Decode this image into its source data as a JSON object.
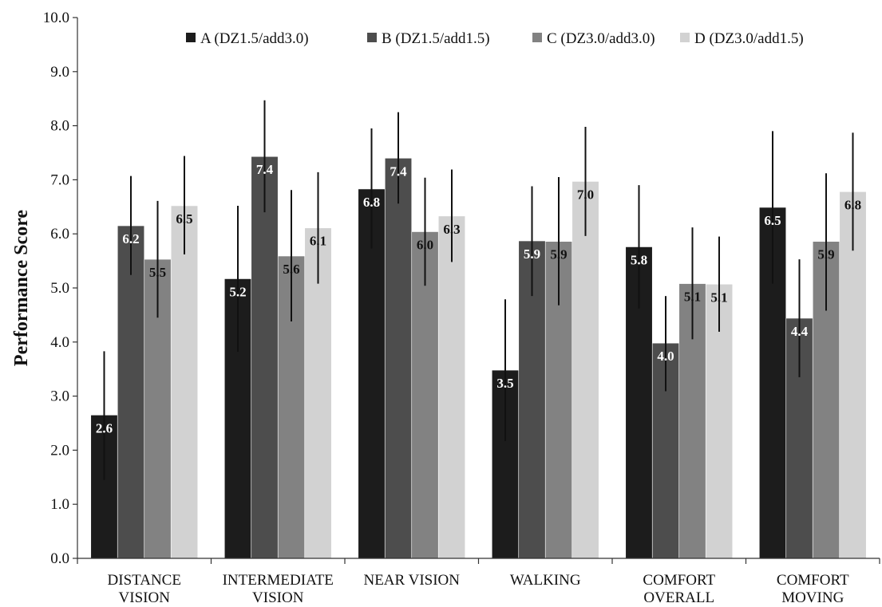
{
  "chart_data": {
    "type": "bar",
    "title": "",
    "xlabel": "",
    "ylabel": "Performance Score",
    "ylim": [
      0,
      10
    ],
    "ytick_step": 1,
    "ytick_labels": [
      "0.0",
      "1.0",
      "2.0",
      "3.0",
      "4.0",
      "5.0",
      "6.0",
      "7.0",
      "8.0",
      "9.0",
      "10.0"
    ],
    "grid": false,
    "legend_position": "top",
    "categories": [
      [
        "DISTANCE",
        "VISION"
      ],
      [
        "INTERMEDIATE",
        "VISION"
      ],
      [
        "NEAR VISION"
      ],
      [
        "WALKING"
      ],
      [
        "COMFORT",
        "OVERALL"
      ],
      [
        "COMFORT",
        "MOVING"
      ]
    ],
    "series": [
      {
        "name": "A (DZ1.5/add3.0)",
        "color": "#1c1c1c",
        "label_color": "#ffffff",
        "values": [
          2.65,
          5.17,
          6.83,
          3.48,
          5.76,
          6.49
        ],
        "data_labels": [
          "2.6",
          "5.2",
          "6.8",
          "3.5",
          "5.8",
          "6.5"
        ],
        "error_low": [
          1.45,
          3.82,
          5.73,
          2.17,
          4.62,
          5.08
        ],
        "error_high": [
          3.83,
          6.52,
          7.95,
          4.79,
          6.9,
          7.9
        ]
      },
      {
        "name": "B (DZ1.5/add1.5)",
        "color": "#4d4d4d",
        "label_color": "#ffffff",
        "values": [
          6.15,
          7.43,
          7.4,
          5.87,
          3.98,
          4.44
        ],
        "data_labels": [
          "6.2",
          "7.4",
          "7.4",
          "5.9",
          "4.0",
          "4.4"
        ],
        "error_low": [
          5.24,
          6.4,
          6.56,
          4.85,
          3.09,
          3.35
        ],
        "error_high": [
          7.07,
          8.47,
          8.25,
          6.88,
          4.85,
          5.53
        ]
      },
      {
        "name": "C (DZ3.0/add3.0)",
        "color": "#828282",
        "label_color": "#111111",
        "values": [
          5.53,
          5.59,
          6.04,
          5.86,
          5.08,
          5.86
        ],
        "data_labels": [
          "5.5",
          "5.6",
          "6.0",
          "5.9",
          "5.1",
          "5.9"
        ],
        "error_low": [
          4.45,
          4.38,
          5.04,
          4.68,
          4.05,
          4.58
        ],
        "error_high": [
          6.61,
          6.81,
          7.04,
          7.05,
          6.12,
          7.12
        ]
      },
      {
        "name": "D (DZ3.0/add1.5)",
        "color": "#d2d2d2",
        "label_color": "#111111",
        "values": [
          6.52,
          6.11,
          6.33,
          6.97,
          5.07,
          6.78
        ],
        "data_labels": [
          "6.5",
          "6.1",
          "6.3",
          "7.0",
          "5.1",
          "6.8"
        ],
        "error_low": [
          5.62,
          5.08,
          5.48,
          5.96,
          4.19,
          5.69
        ],
        "error_high": [
          7.44,
          7.14,
          7.19,
          7.98,
          5.95,
          7.87
        ]
      }
    ]
  }
}
